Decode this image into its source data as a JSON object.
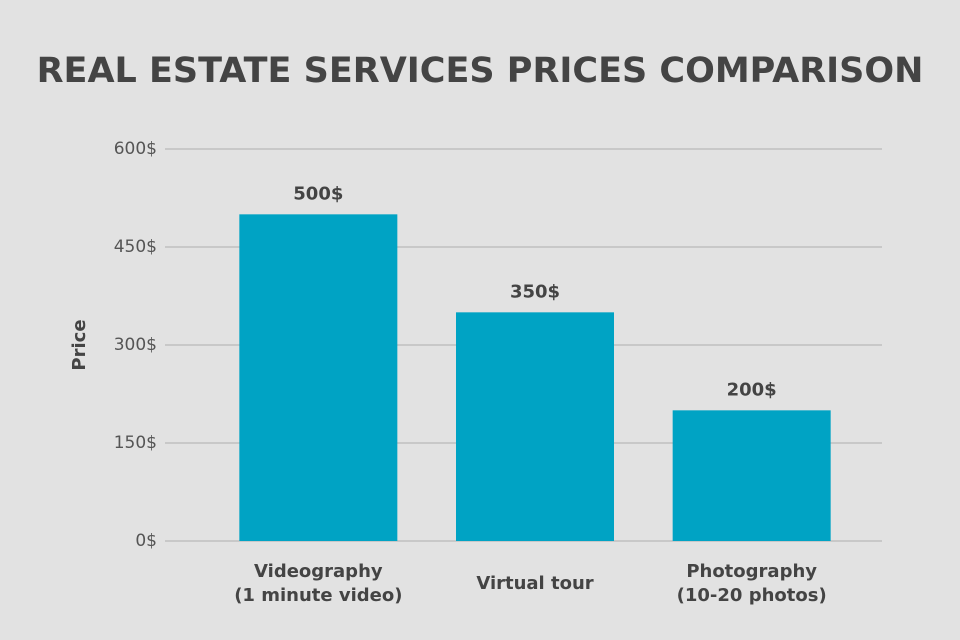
{
  "chart_data": {
    "type": "bar",
    "title": "REAL ESTATE SERVICES PRICES COMPARISON",
    "y_label": "Price",
    "categories": [
      "Videography\n(1 minute video)",
      "Virtual tour",
      "Photography\n(10-20 photos)"
    ],
    "values": [
      500,
      350,
      200
    ],
    "value_labels": [
      "500$",
      "350$",
      "200$"
    ],
    "color": "#00a3c4",
    "ylim": [
      0,
      600
    ],
    "yticks": [
      {
        "value": 0,
        "label": "0$"
      },
      {
        "value": 150,
        "label": "150$"
      },
      {
        "value": 300,
        "label": "300$"
      },
      {
        "value": 450,
        "label": "450$"
      },
      {
        "value": 600,
        "label": "600$"
      }
    ],
    "grid": true
  }
}
